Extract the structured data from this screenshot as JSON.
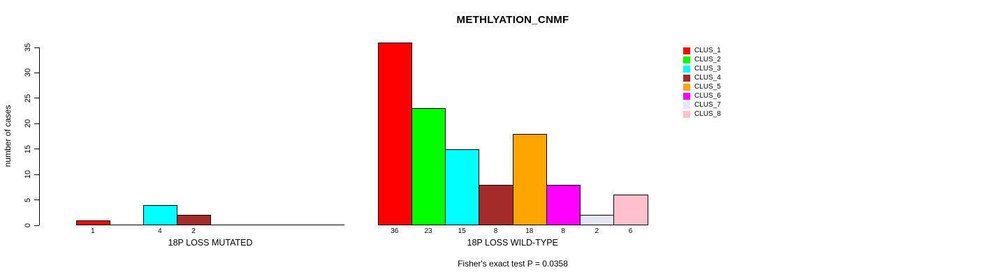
{
  "title": "METHLYATION_CNMF",
  "footer": "Fisher's exact test P = 0.0358",
  "y_axis": {
    "label": "number of cases",
    "ticks": [
      0,
      5,
      10,
      15,
      20,
      25,
      30,
      35
    ]
  },
  "legend": {
    "entries": [
      {
        "label": "CLUS_1",
        "color": "#FF0000"
      },
      {
        "label": "CLUS_2",
        "color": "#00FF00"
      },
      {
        "label": "CLUS_3",
        "color": "#00FFFF"
      },
      {
        "label": "CLUS_4",
        "color": "#A52A2A"
      },
      {
        "label": "CLUS_5",
        "color": "#FFA500"
      },
      {
        "label": "CLUS_6",
        "color": "#FF00FF"
      },
      {
        "label": "CLUS_7",
        "color": "#E6E6FA"
      },
      {
        "label": "CLUS_8",
        "color": "#FFC0CB"
      }
    ]
  },
  "chart_data": {
    "type": "bar",
    "title": "METHLYATION_CNMF",
    "ylabel": "number of cases",
    "ylim": [
      0,
      35
    ],
    "yticks": [
      0,
      5,
      10,
      15,
      20,
      25,
      30,
      35
    ],
    "grid": false,
    "legend_position": "right",
    "categories": [
      "CLUS_1",
      "CLUS_2",
      "CLUS_3",
      "CLUS_4",
      "CLUS_5",
      "CLUS_6",
      "CLUS_7",
      "CLUS_8"
    ],
    "colors": [
      "#FF0000",
      "#00FF00",
      "#00FFFF",
      "#A52A2A",
      "#FFA500",
      "#FF00FF",
      "#E6E6FA",
      "#FFC0CB"
    ],
    "panels": [
      {
        "xlabel": "18P LOSS MUTATED",
        "values": [
          1,
          0,
          4,
          2,
          0,
          0,
          0,
          0
        ],
        "bar_labels": [
          "1",
          "",
          "4",
          "2",
          "",
          "",
          "",
          ""
        ]
      },
      {
        "xlabel": "18P LOSS WILD-TYPE",
        "values": [
          36,
          23,
          15,
          8,
          18,
          8,
          2,
          6
        ],
        "bar_labels": [
          "36",
          "23",
          "15",
          "8",
          "18",
          "8",
          "2",
          "6"
        ]
      }
    ],
    "annotation": "Fisher's exact test P = 0.0358"
  }
}
